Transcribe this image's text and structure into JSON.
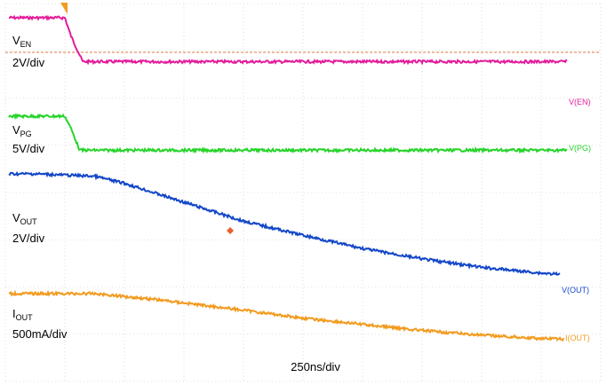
{
  "chart_data": {
    "type": "line",
    "title": "",
    "x_axis_label": "250ns/div",
    "grid": true,
    "trigger_marker": "orange-triangle",
    "reference_line": {
      "name": "V(EN) level",
      "color": "#E07A40",
      "style": "dashed"
    },
    "channels": [
      {
        "name": "V(EN)",
        "color": "#E31C9B",
        "label_main": "V",
        "label_sub": "EN",
        "scale": "2V/div",
        "points": [
          [
            0,
            0.0
          ],
          [
            1,
            0.0
          ],
          [
            1.1,
            -0.38
          ],
          [
            1.3,
            -0.93
          ],
          [
            10,
            -0.93
          ]
        ]
      },
      {
        "name": "V(PG)",
        "color": "#26D42A",
        "label_main": "V",
        "label_sub": "PG",
        "scale": "5V/div",
        "points": [
          [
            0,
            0.0
          ],
          [
            1,
            0.0
          ],
          [
            1.1,
            -0.25
          ],
          [
            1.25,
            -0.72
          ],
          [
            10,
            -0.72
          ]
        ]
      },
      {
        "name": "V(OUT)",
        "color": "#1447C8",
        "label_main": "V",
        "label_sub": "OUT",
        "scale": "2V/div",
        "points": [
          [
            0,
            0.0
          ],
          [
            0.5,
            0.0
          ],
          [
            1.5,
            -0.05
          ],
          [
            2,
            -0.2
          ],
          [
            3,
            -0.6
          ],
          [
            4,
            -1.0
          ],
          [
            5,
            -1.3
          ],
          [
            6,
            -1.58
          ],
          [
            7,
            -1.8
          ],
          [
            8,
            -1.98
          ],
          [
            9,
            -2.1
          ],
          [
            10,
            -2.18
          ]
        ]
      },
      {
        "name": "I(OUT)",
        "color": "#F29B1F",
        "label_main": "I",
        "label_sub": "OUT",
        "scale": "500mA/div",
        "points": [
          [
            0,
            0.0
          ],
          [
            1.5,
            0.0
          ],
          [
            2.5,
            -0.12
          ],
          [
            4,
            -0.35
          ],
          [
            5,
            -0.52
          ],
          [
            6,
            -0.65
          ],
          [
            7,
            -0.78
          ],
          [
            8,
            -0.88
          ],
          [
            9,
            -0.95
          ],
          [
            10,
            -0.98
          ]
        ]
      }
    ]
  }
}
